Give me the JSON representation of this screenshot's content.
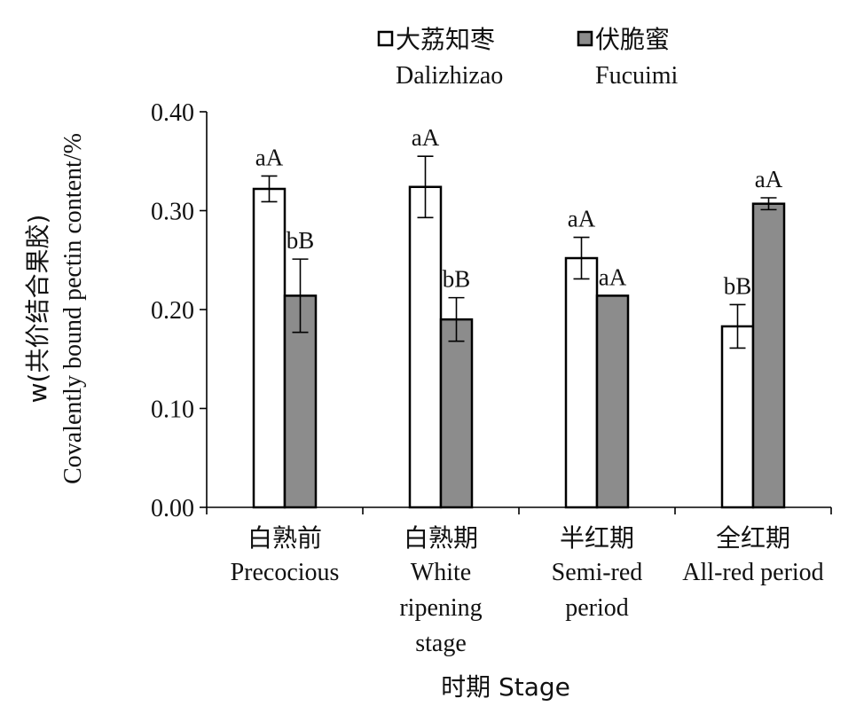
{
  "chart_data": {
    "type": "bar",
    "ylabel_line1": "w(共价结合果胶)",
    "ylabel_line2": "Covalently bound pectin content/%",
    "xlabel": "时期 Stage",
    "ylim": [
      0,
      0.4
    ],
    "yticks": [
      "0.00",
      "0.10",
      "0.20",
      "0.30",
      "0.40"
    ],
    "categories": [
      {
        "zh": "白熟前",
        "en": [
          "Precocious"
        ]
      },
      {
        "zh": "白熟期",
        "en": [
          "White",
          "ripening",
          "stage"
        ]
      },
      {
        "zh": "半红期",
        "en": [
          "Semi-red",
          "period"
        ]
      },
      {
        "zh": "全红期",
        "en": [
          "All-red period"
        ]
      }
    ],
    "series": [
      {
        "name": "大荔知枣",
        "name_en": "Dalizhizao",
        "color": "#ffffff",
        "values": [
          0.322,
          0.324,
          0.252,
          0.183
        ],
        "errors": [
          0.013,
          0.031,
          0.021,
          0.022
        ],
        "labels": [
          "aA",
          "aA",
          "aA",
          "bB"
        ]
      },
      {
        "name": "伏脆蜜",
        "name_en": "Fucuimi",
        "color": "#8c8c8c",
        "values": [
          0.214,
          0.19,
          0.214,
          0.307
        ],
        "errors": [
          0.037,
          0.022,
          0.0,
          0.006
        ],
        "labels": [
          "bB",
          "bB",
          "aA",
          "aA"
        ]
      }
    ],
    "grid": false,
    "legend_position": "top-right"
  }
}
